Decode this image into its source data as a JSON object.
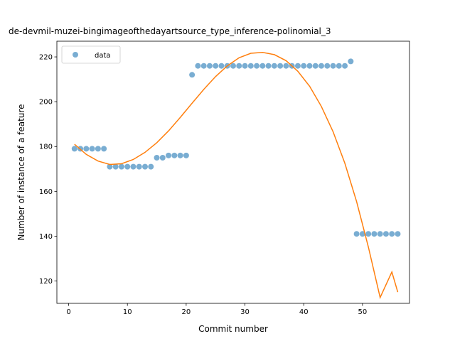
{
  "chart_data": {
    "type": "scatter",
    "title": "de-devmil-muzei-bingimageofthedayartsource_type_inference-polinomial_3",
    "xlabel": "Commit number",
    "ylabel": "Number of instance of a feature",
    "xlim": [
      -2,
      58
    ],
    "ylim": [
      110,
      227
    ],
    "xticks": [
      0,
      10,
      20,
      30,
      40,
      50
    ],
    "yticks": [
      120,
      140,
      160,
      180,
      200,
      220
    ],
    "grid": false,
    "legend": {
      "position": "top-left",
      "entries": [
        "data"
      ]
    },
    "colors": {
      "data": "#1f77b4",
      "fit": "#ff7f0e"
    },
    "series": [
      {
        "name": "data",
        "kind": "scatter",
        "x": [
          1,
          2,
          3,
          4,
          5,
          6,
          7,
          8,
          9,
          10,
          11,
          12,
          13,
          14,
          15,
          16,
          17,
          18,
          19,
          20,
          21,
          22,
          23,
          24,
          25,
          26,
          27,
          28,
          29,
          30,
          31,
          32,
          33,
          34,
          35,
          36,
          37,
          38,
          39,
          40,
          41,
          42,
          43,
          44,
          45,
          46,
          47,
          48,
          49,
          50,
          51,
          52,
          53,
          54,
          55,
          56
        ],
        "y": [
          179,
          179,
          179,
          179,
          179,
          179,
          171,
          171,
          171,
          171,
          171,
          171,
          171,
          171,
          175,
          175,
          176,
          176,
          176,
          176,
          212,
          216,
          216,
          216,
          216,
          216,
          216,
          216,
          216,
          216,
          216,
          216,
          216,
          216,
          216,
          216,
          216,
          216,
          216,
          216,
          216,
          216,
          216,
          216,
          216,
          216,
          216,
          218,
          141,
          141,
          141,
          141,
          141,
          141,
          141,
          141
        ]
      },
      {
        "kind": "line",
        "x": [
          1,
          3,
          5,
          7,
          9,
          11,
          13,
          15,
          17,
          19,
          21,
          23,
          25,
          27,
          29,
          31,
          33,
          35,
          37,
          39,
          41,
          43,
          45,
          47,
          49,
          51,
          53,
          55,
          56
        ],
        "y": [
          181,
          176.5,
          173.5,
          172,
          172.3,
          174.2,
          177.4,
          181.7,
          187,
          193,
          199.3,
          205.5,
          211.2,
          216,
          219.6,
          221.6,
          222,
          221,
          218.3,
          213.6,
          206.9,
          197.9,
          186.6,
          172.5,
          155.4,
          135.2,
          112.6,
          124,
          115
        ]
      }
    ]
  }
}
